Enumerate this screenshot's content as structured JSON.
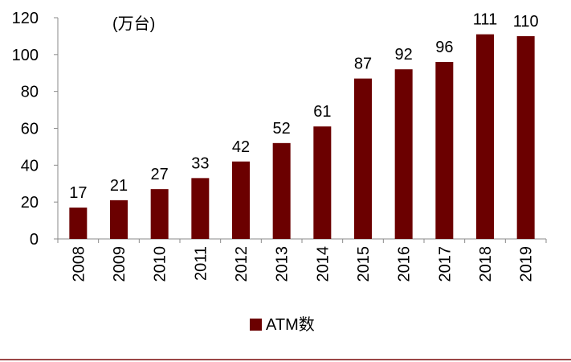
{
  "chart_data": {
    "type": "bar",
    "title": "",
    "unit_label": "(万台)",
    "xlabel": "",
    "ylabel": "",
    "ylim": [
      0,
      120
    ],
    "yticks": [
      0,
      20,
      40,
      60,
      80,
      100,
      120
    ],
    "grid": false,
    "categories": [
      "2008",
      "2009",
      "2010",
      "2011",
      "2012",
      "2013",
      "2014",
      "2015",
      "2016",
      "2017",
      "2018",
      "2019"
    ],
    "series": [
      {
        "name": "ATM数",
        "color": "#6b0000",
        "values": [
          17,
          21,
          27,
          33,
          42,
          52,
          61,
          87,
          92,
          96,
          111,
          110
        ]
      }
    ],
    "legend": {
      "position": "bottom-center",
      "label": "ATM数"
    }
  }
}
